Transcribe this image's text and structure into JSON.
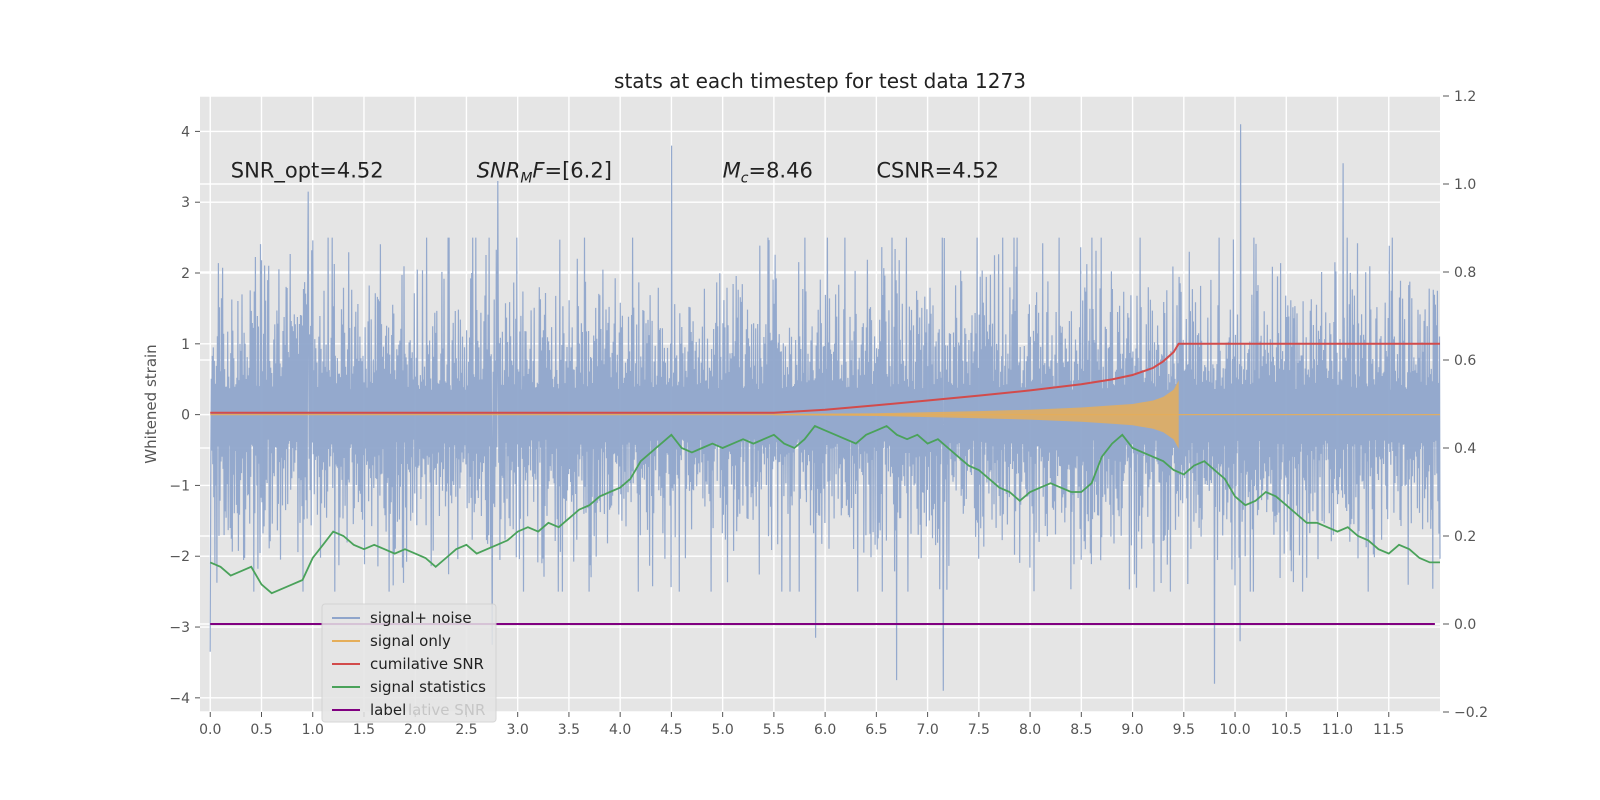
{
  "chart_data": {
    "type": "line",
    "title": "stats at each timestep for test data 1273",
    "ylabel": "Whitened strain",
    "xlabel": "",
    "xlim": [
      -0.1,
      12.0
    ],
    "ylim": [
      -4.2,
      4.5
    ],
    "y2lim": [
      -0.2,
      1.2
    ],
    "grid": true,
    "legend_position": "lower-left",
    "x_ticks": [
      "0.0",
      "0.5",
      "1.0",
      "1.5",
      "2.0",
      "2.5",
      "3.0",
      "3.5",
      "4.0",
      "4.5",
      "5.0",
      "5.5",
      "6.0",
      "6.5",
      "7.0",
      "7.5",
      "8.0",
      "8.5",
      "9.0",
      "9.5",
      "10.0",
      "10.5",
      "11.0",
      "11.5"
    ],
    "y_ticks": [
      4,
      3,
      2,
      1,
      0,
      -1,
      -2,
      -3,
      -4
    ],
    "y_tick_labels": [
      "4",
      "3",
      "2",
      "1",
      "0",
      "−1",
      "−2",
      "−3",
      "−4"
    ],
    "y2_ticks": [
      1.2,
      1.0,
      0.8,
      0.6,
      0.4,
      0.2,
      0.0,
      -0.2
    ],
    "y2_tick_labels": [
      "1.2",
      "1.0",
      "0.8",
      "0.6",
      "0.4",
      "0.2",
      "0.0",
      "−0.2"
    ],
    "annotations": [
      {
        "text": "SNR_opt=4.52",
        "x": 0.2,
        "y": 3.35
      },
      {
        "text": "SNRMF=[6.2]",
        "x": 2.6,
        "y": 3.35
      },
      {
        "text": "Mc=8.46",
        "x": 5.0,
        "y": 3.35
      },
      {
        "text": "CSNR=4.52",
        "x": 6.5,
        "y": 3.35
      }
    ],
    "legend": [
      "signal+ noise",
      "signal only",
      "cumilative SNR",
      "signal statistics",
      "label"
    ],
    "legend_ghost": "lative SNR",
    "colors": {
      "signal_noise": "#8fa5cb",
      "signal_only": "#e5ae5a",
      "cumulative_snr": "#d24b4b",
      "signal_statistics": "#4aa25a",
      "label": "#800080",
      "panel": "#e5e5e5",
      "grid": "#ffffff"
    },
    "series": [
      {
        "name": "signal+ noise",
        "axis": "left",
        "note": "dense noise trace spanning roughly −2 to +2",
        "x_range": [
          0.0,
          12.0
        ],
        "band": [
          -2.0,
          2.0
        ],
        "peaks": [
          {
            "x": 0.0,
            "y": -3.35
          },
          {
            "x": 0.95,
            "y": 3.15
          },
          {
            "x": 2.75,
            "y": -3.25
          },
          {
            "x": 2.8,
            "y": 3.3
          },
          {
            "x": 4.5,
            "y": 3.8
          },
          {
            "x": 5.9,
            "y": -3.15
          },
          {
            "x": 6.7,
            "y": -3.75
          },
          {
            "x": 7.15,
            "y": -3.9
          },
          {
            "x": 9.8,
            "y": -3.8
          },
          {
            "x": 10.05,
            "y": 4.1
          },
          {
            "x": 10.05,
            "y": -3.2
          },
          {
            "x": 11.05,
            "y": 3.55
          }
        ]
      },
      {
        "name": "signal only",
        "axis": "left",
        "note": "chirp envelope growing until merger near 9.45",
        "x": [
          5.5,
          6.5,
          7.5,
          8.0,
          8.5,
          8.8,
          9.0,
          9.2,
          9.3,
          9.4,
          9.45
        ],
        "envelope": [
          0.01,
          0.02,
          0.05,
          0.07,
          0.1,
          0.13,
          0.15,
          0.2,
          0.25,
          0.35,
          0.48
        ]
      },
      {
        "name": "cumilative SNR",
        "axis": "right",
        "x": [
          0.0,
          5.5,
          6.0,
          6.5,
          7.0,
          7.5,
          8.0,
          8.5,
          8.8,
          9.0,
          9.2,
          9.3,
          9.4,
          9.45,
          12.0
        ],
        "values": [
          0.48,
          0.48,
          0.487,
          0.497,
          0.508,
          0.519,
          0.531,
          0.545,
          0.556,
          0.566,
          0.582,
          0.597,
          0.618,
          0.637,
          0.637
        ]
      },
      {
        "name": "signal statistics",
        "axis": "right",
        "x": [
          0.0,
          0.1,
          0.2,
          0.3,
          0.4,
          0.5,
          0.6,
          0.7,
          0.8,
          0.9,
          1.0,
          1.1,
          1.2,
          1.3,
          1.4,
          1.5,
          1.6,
          1.7,
          1.8,
          1.9,
          2.0,
          2.1,
          2.2,
          2.3,
          2.4,
          2.5,
          2.6,
          2.7,
          2.8,
          2.9,
          3.0,
          3.1,
          3.2,
          3.3,
          3.4,
          3.5,
          3.6,
          3.7,
          3.8,
          3.9,
          4.0,
          4.1,
          4.2,
          4.3,
          4.4,
          4.5,
          4.6,
          4.7,
          4.8,
          4.9,
          5.0,
          5.1,
          5.2,
          5.3,
          5.4,
          5.5,
          5.6,
          5.7,
          5.8,
          5.9,
          6.0,
          6.1,
          6.2,
          6.3,
          6.4,
          6.5,
          6.6,
          6.7,
          6.8,
          6.9,
          7.0,
          7.1,
          7.2,
          7.3,
          7.4,
          7.5,
          7.6,
          7.7,
          7.8,
          7.9,
          8.0,
          8.1,
          8.2,
          8.3,
          8.4,
          8.5,
          8.6,
          8.7,
          8.8,
          8.9,
          9.0,
          9.1,
          9.2,
          9.3,
          9.4,
          9.5,
          9.6,
          9.7,
          9.8,
          9.9,
          10.0,
          10.1,
          10.2,
          10.3,
          10.4,
          10.5,
          10.6,
          10.7,
          10.8,
          10.9,
          11.0,
          11.1,
          11.2,
          11.3,
          11.4,
          11.5,
          11.6,
          11.7,
          11.8,
          11.9,
          12.0
        ],
        "values": [
          0.14,
          0.13,
          0.11,
          0.12,
          0.13,
          0.09,
          0.07,
          0.08,
          0.09,
          0.1,
          0.15,
          0.18,
          0.21,
          0.2,
          0.18,
          0.17,
          0.18,
          0.17,
          0.16,
          0.17,
          0.16,
          0.15,
          0.13,
          0.15,
          0.17,
          0.18,
          0.16,
          0.17,
          0.18,
          0.19,
          0.21,
          0.22,
          0.21,
          0.23,
          0.22,
          0.24,
          0.26,
          0.27,
          0.29,
          0.3,
          0.31,
          0.33,
          0.37,
          0.39,
          0.41,
          0.43,
          0.4,
          0.39,
          0.4,
          0.41,
          0.4,
          0.41,
          0.42,
          0.41,
          0.42,
          0.43,
          0.41,
          0.4,
          0.42,
          0.45,
          0.44,
          0.43,
          0.42,
          0.41,
          0.43,
          0.44,
          0.45,
          0.43,
          0.42,
          0.43,
          0.41,
          0.42,
          0.4,
          0.38,
          0.36,
          0.35,
          0.33,
          0.31,
          0.3,
          0.28,
          0.3,
          0.31,
          0.32,
          0.31,
          0.3,
          0.3,
          0.32,
          0.38,
          0.41,
          0.43,
          0.4,
          0.39,
          0.38,
          0.37,
          0.35,
          0.34,
          0.36,
          0.37,
          0.35,
          0.33,
          0.29,
          0.27,
          0.28,
          0.3,
          0.29,
          0.27,
          0.25,
          0.23,
          0.23,
          0.22,
          0.21,
          0.22,
          0.2,
          0.19,
          0.17,
          0.16,
          0.18,
          0.17,
          0.15,
          0.14,
          0.14
        ]
      },
      {
        "name": "label",
        "axis": "right",
        "x": [
          0.0,
          11.95
        ],
        "values": [
          0.0,
          0.0
        ]
      }
    ]
  }
}
